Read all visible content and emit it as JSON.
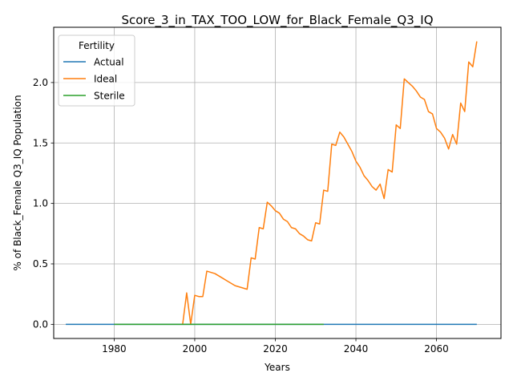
{
  "chart_data": {
    "type": "line",
    "title": "Score_3_in_TAX_TOO_LOW_for_Black_Female_Q3_IQ",
    "xlabel": "Years",
    "ylabel": "% of Black_Female Q3_IQ Population",
    "xlim": [
      1965,
      2076
    ],
    "ylim": [
      -0.117,
      2.457
    ],
    "xticks": [
      1980,
      2000,
      2020,
      2040,
      2060
    ],
    "xtick_labels": [
      "1980",
      "2000",
      "2020",
      "2040",
      "2060"
    ],
    "yticks": [
      0.0,
      0.5,
      1.0,
      1.5,
      2.0
    ],
    "ytick_labels": [
      "0.0",
      "0.5",
      "1.0",
      "1.5",
      "2.0"
    ],
    "grid": true,
    "legend": {
      "title": "Fertility",
      "placement": "top-left"
    },
    "series": [
      {
        "name": "Actual",
        "color": "#1f77b4",
        "x": [
          1968,
          2070
        ],
        "y": [
          0.0,
          0.0
        ]
      },
      {
        "name": "Ideal",
        "color": "#ff7f0e",
        "x": [
          1997,
          1998,
          1999,
          2000,
          2001,
          2002,
          2003,
          2004,
          2005,
          2006,
          2007,
          2008,
          2009,
          2010,
          2011,
          2012,
          2013,
          2014,
          2015,
          2016,
          2017,
          2018,
          2019,
          2020,
          2021,
          2022,
          2023,
          2024,
          2025,
          2026,
          2027,
          2028,
          2029,
          2030,
          2031,
          2032,
          2033,
          2034,
          2035,
          2036,
          2037,
          2038,
          2039,
          2040,
          2041,
          2042,
          2043,
          2044,
          2045,
          2046,
          2047,
          2048,
          2049,
          2050,
          2051,
          2052,
          2053,
          2054,
          2055,
          2056,
          2057,
          2058,
          2059,
          2060,
          2061,
          2062,
          2063,
          2064,
          2065,
          2066,
          2067,
          2068,
          2069,
          2070
        ],
        "y": [
          0.0,
          0.26,
          0.0,
          0.24,
          0.23,
          0.23,
          0.44,
          0.43,
          0.42,
          0.4,
          0.38,
          0.36,
          0.34,
          0.32,
          0.31,
          0.3,
          0.29,
          0.55,
          0.54,
          0.8,
          0.79,
          1.01,
          0.98,
          0.94,
          0.92,
          0.87,
          0.85,
          0.8,
          0.79,
          0.75,
          0.73,
          0.7,
          0.69,
          0.84,
          0.83,
          1.11,
          1.1,
          1.49,
          1.48,
          1.59,
          1.55,
          1.49,
          1.43,
          1.35,
          1.3,
          1.23,
          1.19,
          1.14,
          1.11,
          1.16,
          1.04,
          1.28,
          1.26,
          1.65,
          1.62,
          2.03,
          2.0,
          1.97,
          1.93,
          1.88,
          1.86,
          1.76,
          1.74,
          1.62,
          1.59,
          1.54,
          1.45,
          1.57,
          1.49,
          1.83,
          1.76,
          2.17,
          2.13,
          2.34
        ]
      },
      {
        "name": "Sterile",
        "color": "#2ca02c",
        "x": [
          1980,
          2032
        ],
        "y": [
          0.0,
          0.0
        ]
      }
    ]
  }
}
